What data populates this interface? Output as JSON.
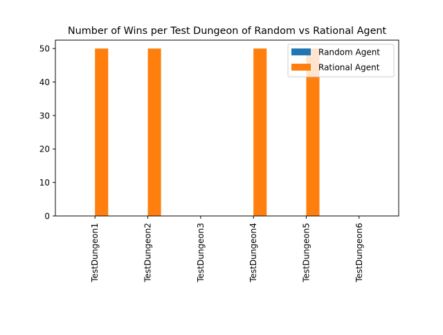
{
  "chart_data": {
    "type": "bar",
    "title": "Number of Wins per Test Dungeon of Random vs Rational Agent",
    "xlabel": "",
    "ylabel": "",
    "categories": [
      "TestDungeon1",
      "TestDungeon2",
      "TestDungeon3",
      "TestDungeon4",
      "TestDungeon5",
      "TestDungeon6"
    ],
    "series": [
      {
        "name": "Random Agent",
        "color": "#1f77b4",
        "values": [
          0,
          0,
          0,
          0,
          0,
          0
        ]
      },
      {
        "name": "Rational Agent",
        "color": "#ff7f0e",
        "values": [
          50,
          50,
          0,
          50,
          50,
          0
        ]
      }
    ],
    "ylim": [
      0,
      52.5
    ],
    "yticks": [
      0,
      10,
      20,
      30,
      40,
      50
    ],
    "grid": false,
    "legend_position": "top-right"
  }
}
